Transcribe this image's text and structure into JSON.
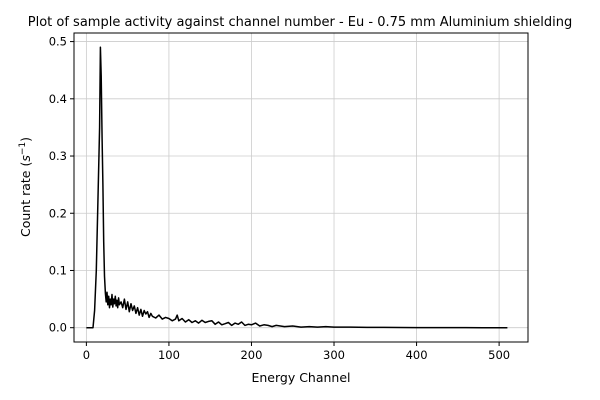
{
  "chart_data": {
    "type": "line",
    "title": "Plot of sample activity against channel number - Eu - 0.75 mm Aluminium shielding",
    "xlabel": "Energy Channel",
    "ylabel_prefix": "Count rate (",
    "ylabel_math": "s",
    "ylabel_sup": "−1",
    "ylabel_suffix": ")",
    "xlim": [
      -15,
      535
    ],
    "ylim": [
      -0.025,
      0.515
    ],
    "xticks": [
      0,
      100,
      200,
      300,
      400,
      500
    ],
    "xtick_labels": [
      "0",
      "100",
      "200",
      "300",
      "400",
      "500"
    ],
    "yticks": [
      0.0,
      0.1,
      0.2,
      0.3,
      0.4,
      0.5
    ],
    "ytick_labels": [
      "0.0",
      "0.1",
      "0.2",
      "0.3",
      "0.4",
      "0.5"
    ],
    "grid": true,
    "line_color": "#000000",
    "grid_color": "#cccccc",
    "series": [
      {
        "x": [
          0,
          4,
          8,
          10,
          12,
          14,
          16,
          17,
          18,
          19,
          20,
          21,
          22,
          23,
          24,
          25,
          26,
          27,
          28,
          29,
          30,
          31,
          32,
          33,
          34,
          35,
          36,
          37,
          38,
          39,
          40,
          42,
          44,
          46,
          48,
          50,
          52,
          54,
          56,
          58,
          60,
          62,
          64,
          66,
          68,
          70,
          72,
          74,
          76,
          78,
          80,
          84,
          88,
          92,
          96,
          100,
          104,
          108,
          110,
          112,
          116,
          120,
          124,
          128,
          132,
          136,
          140,
          144,
          148,
          152,
          156,
          160,
          164,
          168,
          172,
          176,
          180,
          184,
          188,
          192,
          196,
          200,
          205,
          210,
          215,
          220,
          225,
          230,
          240,
          250,
          260,
          270,
          280,
          290,
          300,
          320,
          340,
          360,
          380,
          400,
          420,
          440,
          460,
          480,
          500,
          510
        ],
        "y": [
          0.0,
          0.0,
          0.0,
          0.03,
          0.1,
          0.22,
          0.35,
          0.49,
          0.44,
          0.33,
          0.25,
          0.15,
          0.09,
          0.06,
          0.045,
          0.062,
          0.04,
          0.055,
          0.035,
          0.05,
          0.04,
          0.058,
          0.036,
          0.05,
          0.042,
          0.055,
          0.038,
          0.048,
          0.035,
          0.052,
          0.04,
          0.045,
          0.035,
          0.05,
          0.032,
          0.045,
          0.028,
          0.042,
          0.03,
          0.038,
          0.025,
          0.035,
          0.022,
          0.032,
          0.02,
          0.03,
          0.024,
          0.028,
          0.018,
          0.025,
          0.02,
          0.017,
          0.022,
          0.015,
          0.018,
          0.016,
          0.012,
          0.015,
          0.022,
          0.012,
          0.016,
          0.01,
          0.014,
          0.009,
          0.012,
          0.008,
          0.013,
          0.009,
          0.011,
          0.012,
          0.006,
          0.01,
          0.005,
          0.007,
          0.009,
          0.004,
          0.008,
          0.006,
          0.01,
          0.004,
          0.006,
          0.005,
          0.008,
          0.003,
          0.005,
          0.004,
          0.002,
          0.004,
          0.002,
          0.003,
          0.001,
          0.002,
          0.001,
          0.002,
          0.001,
          0.001,
          0.0005,
          0.0005,
          0.0003,
          0.0002,
          0.0002,
          0.0001,
          0.0001,
          0.0,
          0.0,
          0.0
        ]
      }
    ]
  }
}
